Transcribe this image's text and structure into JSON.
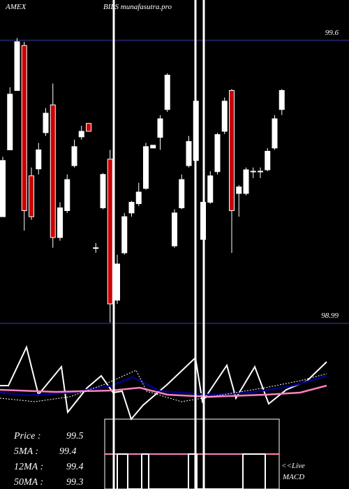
{
  "chart_data": {
    "type": "candlestick",
    "exchange": "AMEX",
    "title": "BILS munafasutra.pro",
    "ylim": [
      98.633,
      99.687
    ],
    "yticks": [
      99.6,
      98.99
    ],
    "grid": true,
    "up_color": "#ffffff",
    "down_color": "#cc0000",
    "open": [
      99.22,
      99.364,
      99.492,
      99.589,
      99.308,
      99.323,
      99.401,
      99.461,
      99.175,
      99.233,
      99.33,
      99.392,
      99.421,
      99.153,
      99.239,
      99.344,
      99.04,
      99.142,
      99.228,
      99.248,
      99.281,
      99.368,
      99.391,
      99.451,
      99.157,
      99.239,
      99.33,
      99.341,
      99.171,
      99.251,
      99.317,
      99.404,
      99.492,
      99.27,
      99.27,
      99.318,
      99.318,
      99.321,
      99.368,
      99.451
    ],
    "high": [
      99.349,
      99.499,
      99.605,
      99.597,
      99.326,
      99.379,
      99.454,
      99.507,
      99.251,
      99.311,
      99.386,
      99.416,
      99.421,
      99.163,
      99.314,
      99.364,
      99.138,
      99.228,
      99.254,
      99.293,
      99.379,
      99.374,
      99.439,
      99.529,
      99.236,
      99.311,
      99.394,
      99.477,
      99.258,
      99.318,
      99.401,
      99.477,
      99.495,
      99.288,
      99.326,
      99.326,
      99.326,
      99.368,
      99.439,
      99.495
    ],
    "low": [
      99.22,
      99.364,
      99.492,
      99.19,
      99.213,
      99.311,
      99.394,
      99.153,
      99.168,
      99.228,
      99.326,
      99.386,
      99.404,
      99.142,
      99.236,
      98.992,
      99.032,
      99.138,
      99.22,
      99.243,
      99.278,
      99.368,
      99.364,
      99.446,
      99.153,
      99.236,
      99.326,
      99.326,
      99.168,
      99.248,
      99.311,
      99.398,
      99.142,
      99.22,
      99.266,
      99.303,
      99.303,
      99.318,
      99.364,
      99.439
    ],
    "close": [
      99.341,
      99.484,
      99.597,
      99.233,
      99.22,
      99.364,
      99.443,
      99.175,
      99.239,
      99.3,
      99.371,
      99.404,
      99.404,
      99.153,
      99.311,
      99.032,
      99.118,
      99.22,
      99.251,
      99.273,
      99.371,
      99.374,
      99.431,
      99.525,
      99.228,
      99.3,
      99.382,
      99.469,
      99.251,
      99.308,
      99.397,
      99.469,
      99.233,
      99.284,
      99.321,
      99.318,
      99.318,
      99.361,
      99.431,
      99.492
    ],
    "info": [
      {
        "label": "Price   :",
        "value": 99.5
      },
      {
        "label": "5MA :",
        "value": 99.4
      },
      {
        "label": "12MA :",
        "value": 99.4
      },
      {
        "label": "50MA :",
        "value": 99.3
      }
    ],
    "live": "<<Live",
    "indicator": "MACD"
  }
}
